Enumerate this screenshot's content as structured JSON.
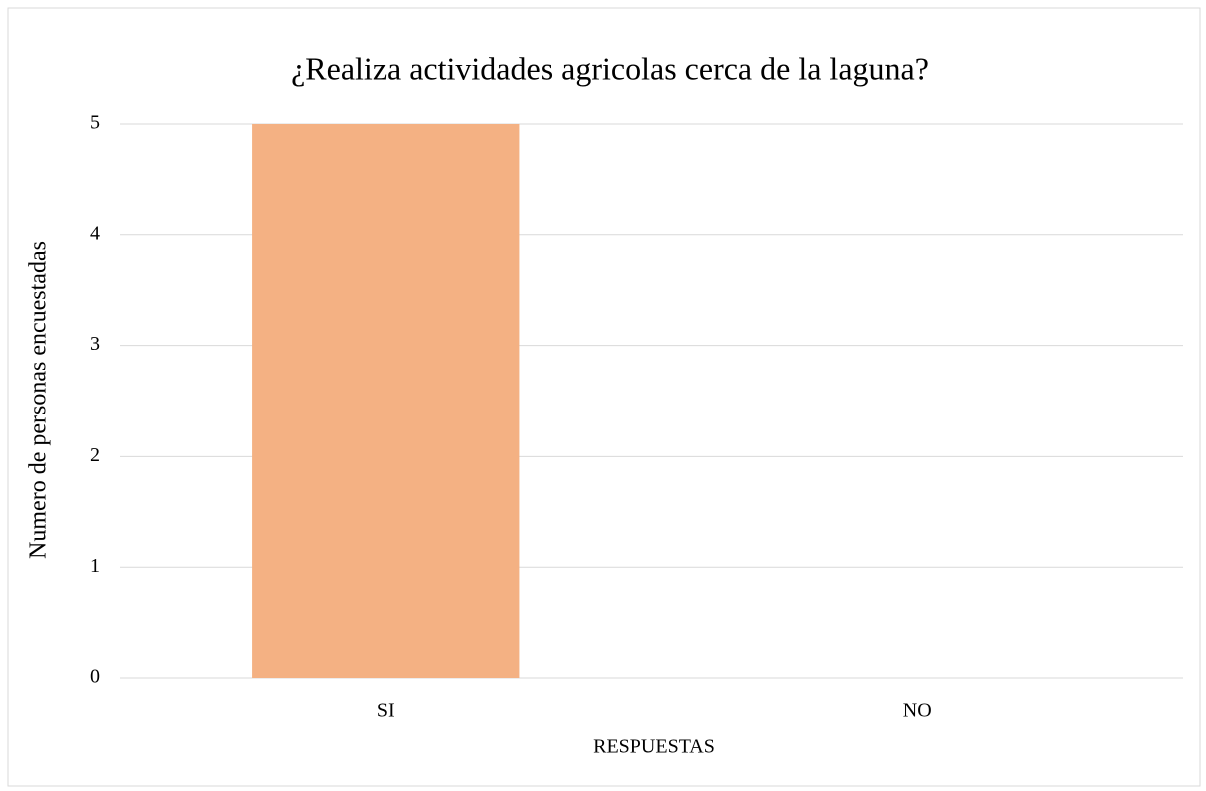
{
  "chart_data": {
    "type": "bar",
    "title": "¿Realiza actividades agricolas cerca de la laguna?",
    "x_label": "RESPUESTAS",
    "y_label": "Numero de personas encuestadas",
    "categories": [
      "SI",
      "NO"
    ],
    "values": [
      5,
      0
    ],
    "color": "#f4b183",
    "ylim": [
      0,
      5
    ],
    "yticks": [
      0,
      1,
      2,
      3,
      4,
      5
    ],
    "grid": true
  }
}
